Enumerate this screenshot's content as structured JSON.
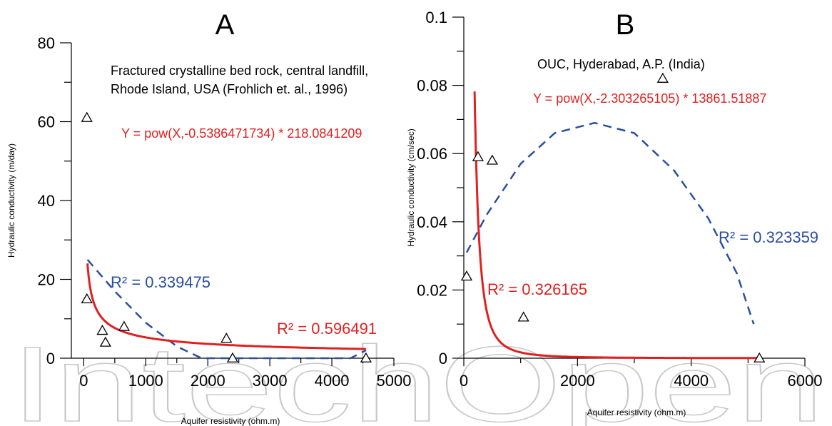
{
  "chart_data": [
    {
      "type": "scatter",
      "panel_label": "A",
      "xlabel": "Aquifer resistivity (ohm.m)",
      "ylabel": "Hydraulic conductivity (m/day)",
      "xlim": [
        -200,
        5000
      ],
      "ylim": [
        0,
        80
      ],
      "xticks": [
        0,
        1000,
        2000,
        3000,
        4000,
        5000
      ],
      "yticks": [
        0,
        20,
        40,
        60,
        80
      ],
      "points": [
        {
          "x": 50,
          "y": 61
        },
        {
          "x": 50,
          "y": 15
        },
        {
          "x": 300,
          "y": 7
        },
        {
          "x": 350,
          "y": 4
        },
        {
          "x": 650,
          "y": 8
        },
        {
          "x": 2300,
          "y": 5
        },
        {
          "x": 2400,
          "y": 0
        },
        {
          "x": 4550,
          "y": 0
        }
      ],
      "annotation": "Fractured crystalline bed rock, central landfill,\nRhode Island, USA (Frohlich et. al., 1996)",
      "equation": "Y = pow(X,-0.5386471734) * 218.0841209",
      "power_fit": {
        "exponent": -0.5386471734,
        "coefficient": 218.0841209,
        "x_range": [
          60,
          4550
        ],
        "r2_label": "R² = 0.596491"
      },
      "poly_fit": {
        "points": [
          [
            60,
            25
          ],
          [
            500,
            17
          ],
          [
            1000,
            9
          ],
          [
            1500,
            3
          ],
          [
            1900,
            0
          ],
          [
            2500,
            0
          ],
          [
            3500,
            0
          ],
          [
            4300,
            0
          ],
          [
            4550,
            2
          ]
        ],
        "r2_label": "R² = 0.339475"
      },
      "grid": false
    },
    {
      "type": "scatter",
      "panel_label": "B",
      "xlabel": "Aquifer resistivity (ohm.m)",
      "ylabel": "Hydraulic conductivity (cm/sec)",
      "xlim": [
        0,
        6000
      ],
      "ylim": [
        0,
        0.1
      ],
      "xticks": [
        0,
        2000,
        4000,
        6000
      ],
      "yticks": [
        0,
        0.02,
        0.04,
        0.06,
        0.08,
        0.1
      ],
      "points": [
        {
          "x": 50,
          "y": 0.024
        },
        {
          "x": 250,
          "y": 0.059
        },
        {
          "x": 500,
          "y": 0.058
        },
        {
          "x": 1050,
          "y": 0.012
        },
        {
          "x": 3500,
          "y": 0.082
        },
        {
          "x": 5200,
          "y": 0
        }
      ],
      "annotation": "OUC, Hyderabad, A.P. (India)",
      "equation": "Y = pow(X,-2.303265105) * 13861.51887",
      "power_fit": {
        "exponent": -2.303265105,
        "coefficient": 13861.51887,
        "x_range": [
          190,
          5200
        ],
        "r2_label": "R² = 0.326165"
      },
      "poly_fit": {
        "points": [
          [
            50,
            0.031
          ],
          [
            400,
            0.042
          ],
          [
            1000,
            0.057
          ],
          [
            1600,
            0.066
          ],
          [
            2300,
            0.069
          ],
          [
            3000,
            0.066
          ],
          [
            3700,
            0.055
          ],
          [
            4300,
            0.041
          ],
          [
            4800,
            0.025
          ],
          [
            5100,
            0.01
          ]
        ],
        "r2_label": "R² = 0.323359"
      },
      "grid": false
    }
  ],
  "watermark": "IntechOpen"
}
